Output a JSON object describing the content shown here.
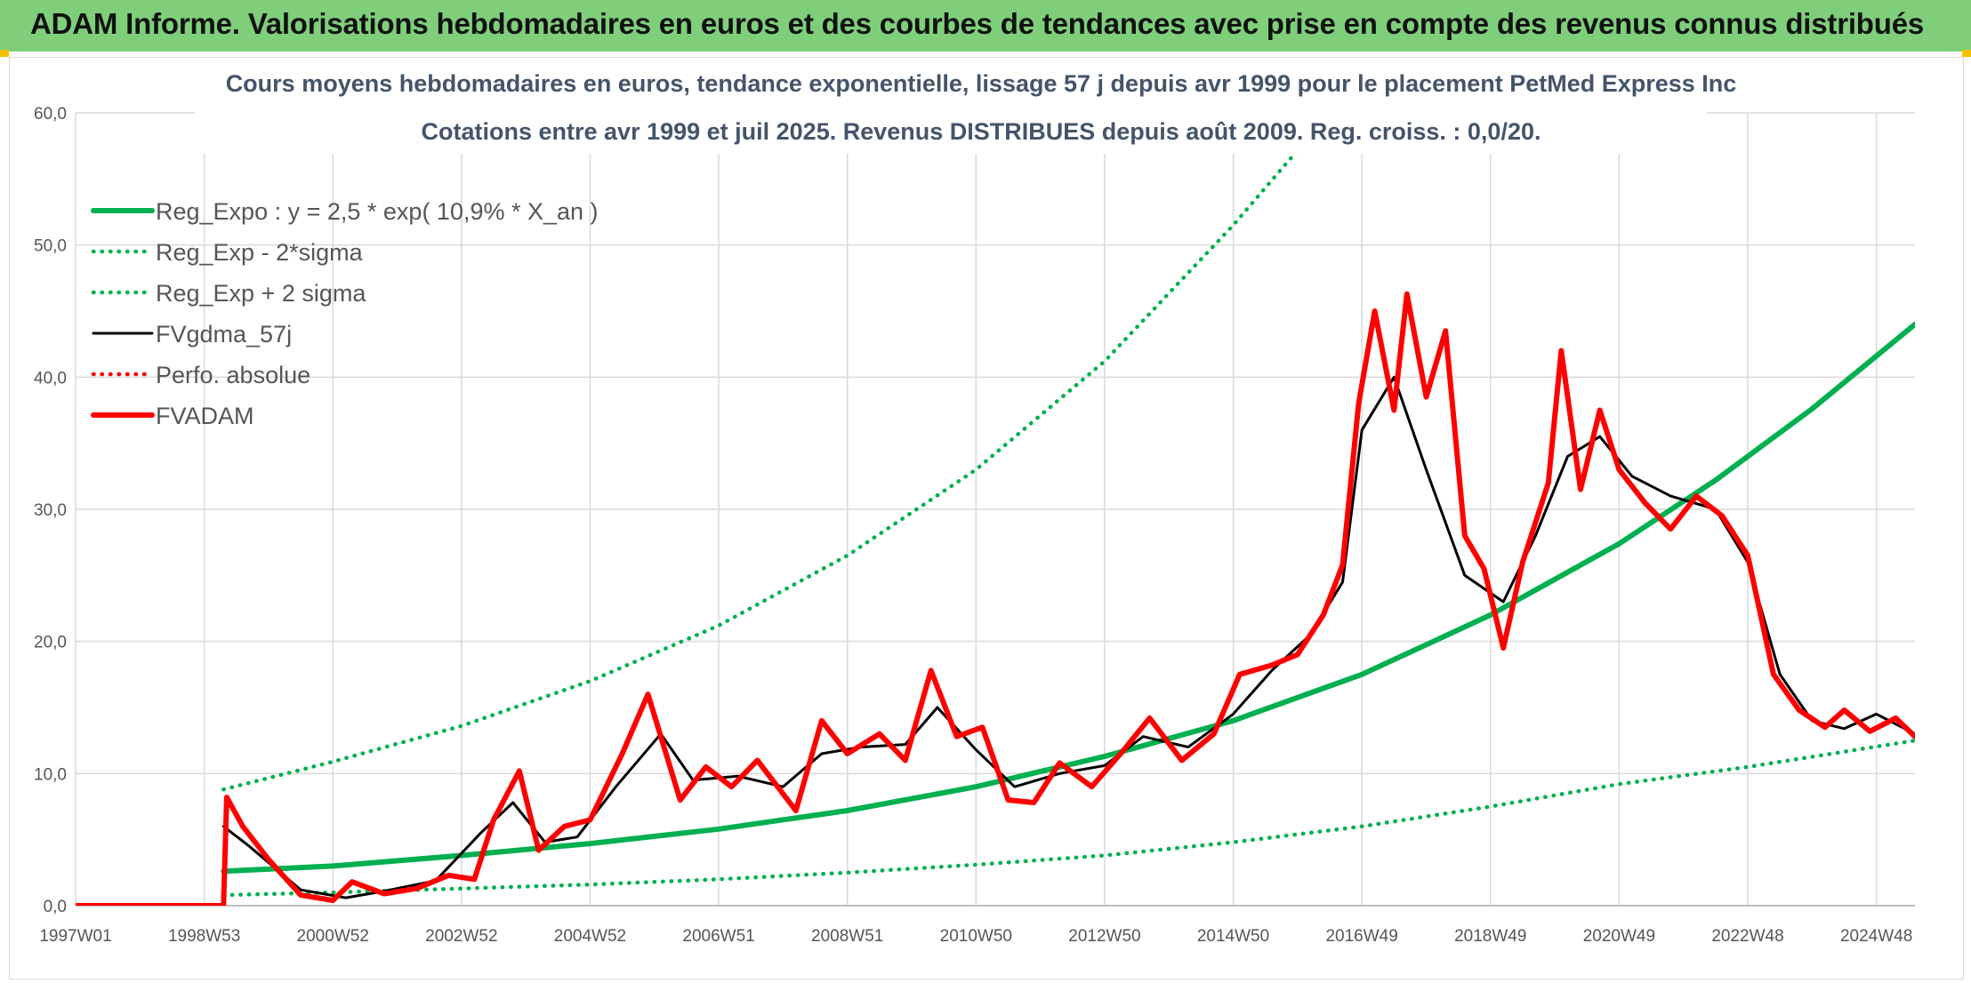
{
  "header": {
    "title": "ADAM Informe. Valorisations hebdomadaires en euros et des courbes de tendances avec prise en compte des revenus connus distribués"
  },
  "chart_data": {
    "type": "line",
    "title": "Cours moyens hebdomadaires en euros, tendance exponentielle, lissage 57 j depuis avr 1999 pour le placement PetMed Express Inc",
    "subtitle": "Cotations entre avr 1999 et juil 2025. Revenus DISTRIBUES depuis août 2009. Reg. croiss. : 0,0/20.",
    "xlabel": "",
    "ylabel": "",
    "ylim": [
      0,
      60
    ],
    "y_ticks": [
      "0,0",
      "10,0",
      "20,0",
      "30,0",
      "40,0",
      "50,0",
      "60,0"
    ],
    "x_ticks": [
      "1997W01",
      "1998W53",
      "2000W52",
      "2002W52",
      "2004W52",
      "2006W51",
      "2008W51",
      "2010W50",
      "2012W50",
      "2014W50",
      "2016W49",
      "2018W49",
      "2020W49",
      "2022W48",
      "2024W48"
    ],
    "x_tick_years": [
      1997.0,
      1999.0,
      2001.0,
      2003.0,
      2005.0,
      2007.0,
      2009.0,
      2011.0,
      2013.0,
      2015.0,
      2017.0,
      2019.0,
      2021.0,
      2023.0,
      2025.0
    ],
    "xlim": [
      1997.0,
      2025.6
    ],
    "grid": true,
    "legend_position": "top-left",
    "colors": {
      "green": "#00b050",
      "black": "#000000",
      "red": "#ff0000"
    },
    "series": [
      {
        "name": "Reg_Expo : y = 2,5 * exp( 10,9% *  X_an )",
        "style": "solid-thick",
        "color": "#00b050",
        "x": [
          1999.3,
          2001,
          2003,
          2005,
          2007,
          2009,
          2011,
          2013,
          2015,
          2017,
          2019,
          2021,
          2022.5,
          2024,
          2025.6
        ],
        "y": [
          2.6,
          3.0,
          3.8,
          4.7,
          5.8,
          7.2,
          9.0,
          11.3,
          14.0,
          17.5,
          22.0,
          27.4,
          32.2,
          37.6,
          44.0
        ]
      },
      {
        "name": "Reg_Exp - 2*sigma",
        "style": "dotted",
        "color": "#00b050",
        "x": [
          1999.3,
          2001,
          2003,
          2005,
          2007,
          2009,
          2011,
          2013,
          2015,
          2017,
          2019,
          2021,
          2023,
          2025.6
        ],
        "y": [
          0.8,
          1.0,
          1.3,
          1.6,
          2.0,
          2.5,
          3.1,
          3.8,
          4.8,
          6.0,
          7.5,
          9.2,
          10.5,
          12.5
        ]
      },
      {
        "name": "Reg_Exp + 2 sigma",
        "style": "dotted",
        "color": "#00b050",
        "x": [
          1999.3,
          2001,
          2003,
          2005,
          2007,
          2009,
          2011,
          2013,
          2015,
          2016.5
        ],
        "y": [
          8.8,
          10.9,
          13.6,
          17.0,
          21.2,
          26.5,
          33.0,
          41.2,
          51.5,
          60.0
        ]
      },
      {
        "name": "FVgdma_57j",
        "style": "solid",
        "color": "#000000",
        "x": [
          1999.3,
          1999.7,
          2000.5,
          2001.2,
          2001.8,
          2002.6,
          2003.3,
          2003.8,
          2004.3,
          2004.8,
          2005.4,
          2006.1,
          2006.6,
          2007.3,
          2008.0,
          2008.6,
          2009.2,
          2009.9,
          2010.4,
          2011.0,
          2011.6,
          2012.3,
          2013.0,
          2013.6,
          2014.3,
          2015.0,
          2015.6,
          2016.2,
          2016.7,
          2017.0,
          2017.5,
          2018.0,
          2018.6,
          2019.2,
          2019.7,
          2020.2,
          2020.7,
          2021.2,
          2021.8,
          2022.5,
          2023.0,
          2023.5,
          2024.0,
          2024.5,
          2025.0,
          2025.6
        ],
        "y": [
          6.0,
          4.5,
          1.2,
          0.6,
          1.1,
          1.9,
          5.5,
          7.8,
          4.8,
          5.2,
          9.0,
          13.0,
          9.5,
          9.8,
          9.0,
          11.5,
          12.0,
          12.2,
          15.0,
          11.8,
          9.0,
          10.0,
          10.6,
          12.8,
          12.0,
          14.5,
          17.8,
          20.5,
          24.5,
          36.0,
          40.0,
          33.0,
          25.0,
          23.0,
          28.0,
          34.0,
          35.5,
          32.5,
          31.0,
          30.0,
          26.0,
          17.5,
          14.0,
          13.4,
          14.5,
          13.0
        ]
      },
      {
        "name": "Perfo. absolue",
        "style": "dotted",
        "color": "#ff0000",
        "x": [],
        "y": []
      },
      {
        "name": "FVADAM",
        "style": "solid-thick",
        "color": "#ff0000",
        "x": [
          1997.0,
          1999.3,
          1999.35,
          1999.6,
          2000.0,
          2000.5,
          2001.0,
          2001.3,
          2001.8,
          2002.3,
          2002.8,
          2003.2,
          2003.5,
          2003.9,
          2004.2,
          2004.6,
          2005.0,
          2005.5,
          2005.9,
          2006.4,
          2006.8,
          2007.2,
          2007.6,
          2008.2,
          2008.6,
          2009.0,
          2009.5,
          2009.9,
          2010.3,
          2010.7,
          2011.1,
          2011.5,
          2011.9,
          2012.3,
          2012.8,
          2013.3,
          2013.7,
          2014.2,
          2014.7,
          2015.1,
          2015.6,
          2016.0,
          2016.4,
          2016.7,
          2016.95,
          2017.2,
          2017.5,
          2017.7,
          2018.0,
          2018.3,
          2018.6,
          2018.9,
          2019.2,
          2019.5,
          2019.9,
          2020.1,
          2020.4,
          2020.7,
          2021.0,
          2021.4,
          2021.8,
          2022.2,
          2022.6,
          2023.0,
          2023.4,
          2023.8,
          2024.2,
          2024.5,
          2024.9,
          2025.3,
          2025.6
        ],
        "y": [
          0.0,
          0.0,
          8.2,
          6.0,
          3.5,
          0.8,
          0.4,
          1.8,
          0.9,
          1.3,
          2.3,
          2.0,
          6.5,
          10.2,
          4.2,
          6.0,
          6.5,
          11.5,
          16.0,
          8.0,
          10.5,
          9.0,
          11.0,
          7.2,
          14.0,
          11.5,
          13.0,
          11.0,
          17.8,
          12.8,
          13.5,
          8.0,
          7.8,
          10.8,
          9.0,
          11.8,
          14.2,
          11.0,
          13.0,
          17.5,
          18.2,
          19.0,
          22.0,
          25.8,
          38.0,
          45.0,
          37.5,
          46.3,
          38.5,
          43.5,
          28.0,
          25.5,
          19.5,
          26.0,
          32.0,
          42.0,
          31.5,
          37.5,
          33.0,
          30.5,
          28.5,
          31.0,
          29.5,
          26.5,
          17.5,
          14.8,
          13.5,
          14.8,
          13.2,
          14.2,
          12.8
        ]
      }
    ]
  }
}
